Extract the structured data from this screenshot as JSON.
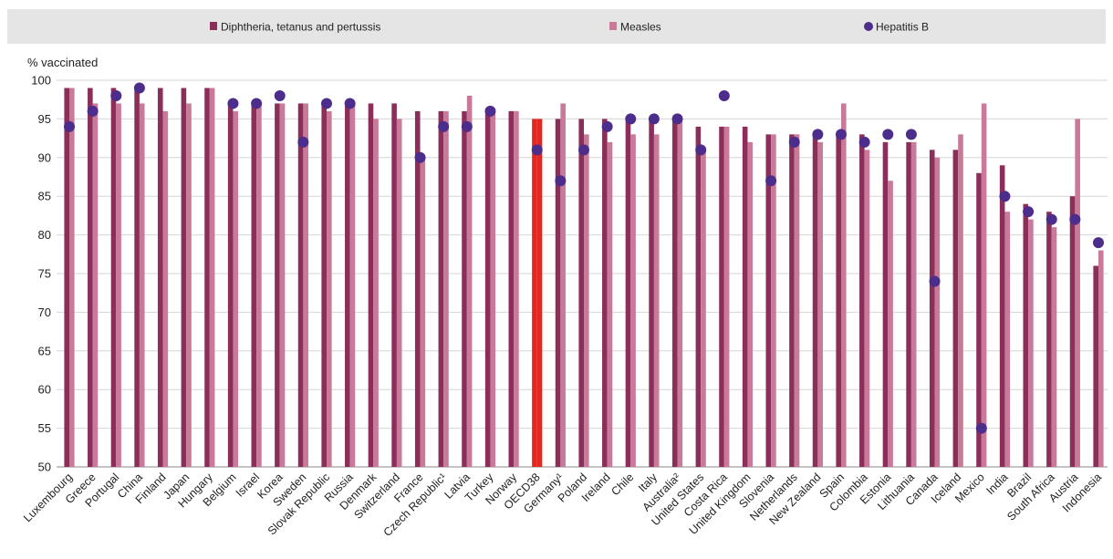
{
  "legend": {
    "items": [
      {
        "label": "Diphtheria, tetanus and pertussis",
        "color": "#8b2f5a",
        "marker": "square"
      },
      {
        "label": "Measles",
        "color": "#c97a98",
        "marker": "square"
      },
      {
        "label": "Hepatitis B",
        "color": "#4d2d8c",
        "marker": "circle"
      }
    ]
  },
  "chart_data": {
    "type": "bar",
    "ylabel": "% vaccinated",
    "ylim": [
      50,
      100
    ],
    "yticks": [
      50,
      55,
      60,
      65,
      70,
      75,
      80,
      85,
      90,
      95,
      100
    ],
    "grid": true,
    "legend_position": "top",
    "highlight_category": "OECD38",
    "highlight_color": "#e8251f",
    "colors": {
      "dtp": "#8b2f5a",
      "measles": "#c97a98",
      "hepb": "#4d2d8c"
    },
    "categories": [
      "Luxembourg",
      "Greece",
      "Portugal",
      "China",
      "Finland",
      "Japan",
      "Hungary",
      "Belgium",
      "Israel",
      "Korea",
      "Sweden",
      "Slovak Republic",
      "Russia",
      "Denmark",
      "Switzerland",
      "France",
      "Czech Republic¹",
      "Latvia",
      "Turkey",
      "Norway",
      "OECD38",
      "Germany¹",
      "Poland",
      "Ireland",
      "Chile",
      "Italy",
      "Australia²",
      "United States",
      "Costa Rica",
      "United Kingdom",
      "Slovenia",
      "Netherlands",
      "New Zealand",
      "Spain",
      "Colombia",
      "Estonia",
      "Lithuania",
      "Canada",
      "Iceland",
      "Mexico",
      "India",
      "Brazil",
      "South Africa",
      "Austria",
      "Indonesia"
    ],
    "series": [
      {
        "name": "Diphtheria, tetanus and pertussis",
        "key": "dtp",
        "style": "bar",
        "values": [
          99,
          99,
          99,
          99,
          99,
          99,
          99,
          97,
          97,
          97,
          97,
          97,
          97,
          97,
          97,
          96,
          96,
          96,
          96,
          96,
          95,
          95,
          95,
          95,
          95,
          95,
          95,
          94,
          94,
          94,
          93,
          93,
          93,
          93,
          93,
          92,
          92,
          91,
          91,
          88,
          89,
          84,
          83,
          85,
          76
        ]
      },
      {
        "name": "Measles",
        "key": "measles",
        "style": "bar",
        "values": [
          99,
          97,
          97,
          97,
          96,
          97,
          99,
          96,
          97,
          97,
          97,
          96,
          97,
          95,
          95,
          90,
          96,
          98,
          96,
          96,
          95,
          97,
          93,
          92,
          93,
          93,
          95,
          91,
          94,
          92,
          93,
          93,
          92,
          97,
          91,
          87,
          92,
          90,
          93,
          97,
          83,
          82,
          81,
          95,
          78
        ]
      },
      {
        "name": "Hepatitis B",
        "key": "hepb",
        "style": "dot",
        "values": [
          94,
          96,
          98,
          99,
          null,
          null,
          null,
          97,
          97,
          98,
          92,
          97,
          97,
          null,
          null,
          90,
          94,
          94,
          96,
          null,
          91,
          87,
          91,
          94,
          95,
          95,
          95,
          91,
          98,
          null,
          87,
          92,
          93,
          93,
          92,
          93,
          93,
          74,
          null,
          55,
          85,
          83,
          82,
          82,
          79
        ]
      }
    ]
  }
}
